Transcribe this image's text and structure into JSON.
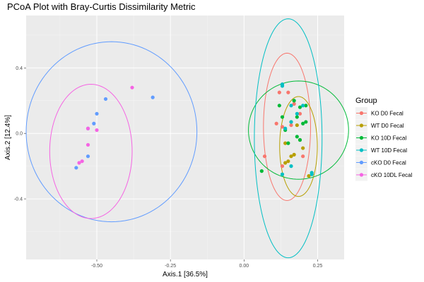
{
  "chart_data": {
    "type": "scatter",
    "title": "PCoA Plot with Bray-Curtis Dissimilarity Metric",
    "xlabel": "Axis.1   [36.5%]",
    "ylabel": "Axis.2   [12.4%]",
    "xlim": [
      -0.74,
      0.34
    ],
    "ylim": [
      -0.77,
      0.72
    ],
    "xticks": [
      -0.5,
      -0.25,
      0.0,
      0.25
    ],
    "xtick_labels": [
      "-0.50",
      "-0.25",
      "0.00",
      "0.25"
    ],
    "yticks": [
      -0.4,
      0.0,
      0.4
    ],
    "ytick_labels": [
      "-0.4",
      "0.0",
      "0.4"
    ],
    "grid": true,
    "legend_title": "Group",
    "legend_position": "right",
    "series": [
      {
        "name": "KO D0 Fecal",
        "color": "#F8766D",
        "points": [
          [
            0.12,
            0.25
          ],
          [
            0.17,
            0.18
          ],
          [
            0.11,
            0.06
          ],
          [
            0.13,
            0.04
          ],
          [
            0.16,
            0.05
          ],
          [
            0.19,
            0.12
          ],
          [
            0.07,
            -0.14
          ],
          [
            0.13,
            -0.2
          ],
          [
            0.2,
            -0.14
          ],
          [
            0.15,
            0.25
          ]
        ],
        "ellipse": {
          "cx": 0.146,
          "cy": 0.04,
          "rx": 0.08,
          "ry": 0.45,
          "angle": 0
        }
      },
      {
        "name": "WT D0 Fecal",
        "color": "#B79F00",
        "points": [
          [
            0.16,
            0.07
          ],
          [
            0.14,
            -0.06
          ],
          [
            0.18,
            0.05
          ],
          [
            0.17,
            -0.13
          ],
          [
            0.19,
            -0.04
          ],
          [
            0.16,
            -0.14
          ],
          [
            0.14,
            -0.18
          ],
          [
            0.2,
            -0.09
          ],
          [
            0.22,
            -0.26
          ],
          [
            0.15,
            -0.17
          ]
        ],
        "ellipse": {
          "cx": 0.185,
          "cy": -0.08,
          "rx": 0.064,
          "ry": 0.305,
          "angle": 0
        }
      },
      {
        "name": "KO 10D Fecal",
        "color": "#00BA38",
        "points": [
          [
            0.12,
            0.17
          ],
          [
            0.17,
            0.2
          ],
          [
            0.19,
            0.16
          ],
          [
            0.21,
            0.17
          ],
          [
            0.13,
            0.1
          ],
          [
            0.18,
            0.1
          ],
          [
            0.2,
            0.06
          ],
          [
            0.14,
            0.02
          ],
          [
            0.21,
            0.07
          ],
          [
            0.15,
            -0.06
          ],
          [
            0.19,
            -0.04
          ],
          [
            0.06,
            -0.23
          ],
          [
            0.18,
            -0.02
          ]
        ],
        "ellipse": {
          "cx": 0.185,
          "cy": 0.02,
          "rx": 0.17,
          "ry": 0.3,
          "angle": 0
        }
      },
      {
        "name": "WT 10D Fecal",
        "color": "#00BFC4",
        "points": [
          [
            0.13,
            0.3
          ],
          [
            0.13,
            0.29
          ],
          [
            0.16,
            0.17
          ],
          [
            0.2,
            0.17
          ],
          [
            0.14,
            0.03
          ],
          [
            0.18,
            0.12
          ],
          [
            0.13,
            -0.25
          ],
          [
            0.16,
            -0.2
          ],
          [
            0.23,
            -0.24
          ],
          [
            0.23,
            -0.25
          ],
          [
            0.16,
            0.07
          ]
        ],
        "ellipse": {
          "cx": 0.15,
          "cy": -0.03,
          "rx": 0.115,
          "ry": 0.73,
          "angle": 0
        }
      },
      {
        "name": "cKO D0 Fecal",
        "color": "#619CFF",
        "points": [
          [
            -0.47,
            0.21
          ],
          [
            -0.31,
            0.22
          ],
          [
            -0.5,
            0.12
          ],
          [
            -0.51,
            0.06
          ],
          [
            -0.53,
            0.03
          ],
          [
            -0.53,
            -0.14
          ],
          [
            -0.57,
            -0.21
          ]
        ],
        "ellipse": {
          "cx": -0.45,
          "cy": 0.01,
          "rx": 0.29,
          "ry": 0.55,
          "angle": 0
        }
      },
      {
        "name": "cKO 10DL Fecal",
        "color": "#F564E3",
        "points": [
          [
            -0.38,
            0.28
          ],
          [
            -0.53,
            0.03
          ],
          [
            -0.5,
            0.02
          ],
          [
            -0.53,
            -0.07
          ],
          [
            -0.55,
            -0.17
          ],
          [
            -0.56,
            -0.18
          ]
        ],
        "ellipse": {
          "cx": -0.52,
          "cy": -0.11,
          "rx": 0.14,
          "ry": 0.41,
          "angle": 0
        }
      }
    ]
  }
}
